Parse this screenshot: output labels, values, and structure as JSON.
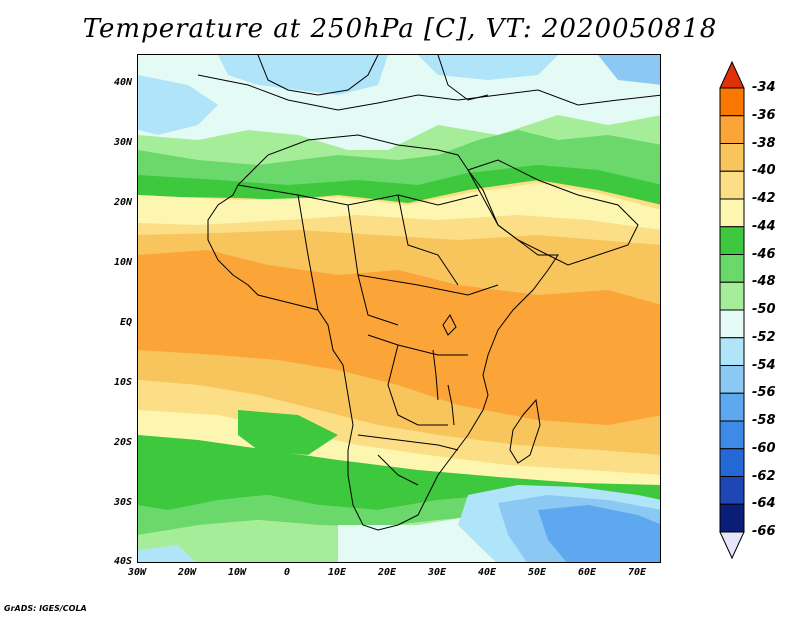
{
  "title": "Temperature at 250hPa [C], VT: 2020050818",
  "credit": "GrADS: IGES/COLA",
  "map": {
    "region": "Africa",
    "lat_labels": [
      "40N",
      "30N",
      "20N",
      "10N",
      "EQ",
      "10S",
      "20S",
      "30S",
      "40S"
    ],
    "lon_labels": [
      "30W",
      "20W",
      "10W",
      "0",
      "10E",
      "20E",
      "30E",
      "40E",
      "50E",
      "60E",
      "70E"
    ],
    "field": "Temperature at 250hPa",
    "units": "C"
  },
  "colorbar": {
    "levels": [
      {
        "label": "-34",
        "color": "#f03c0a"
      },
      {
        "label": "-36",
        "color": "#fa7800"
      },
      {
        "label": "-38",
        "color": "#fba437"
      },
      {
        "label": "-40",
        "color": "#f8c45c"
      },
      {
        "label": "-42",
        "color": "#fbde85"
      },
      {
        "label": "-44",
        "color": "#fcf6b0"
      },
      {
        "label": "-46",
        "color": "#3ec83e"
      },
      {
        "label": "-48",
        "color": "#6ad86a"
      },
      {
        "label": "-50",
        "color": "#a6ed9a"
      },
      {
        "label": "-52",
        "color": "#e4fbf5"
      },
      {
        "label": "-54",
        "color": "#b0e4f8"
      },
      {
        "label": "-56",
        "color": "#8cc8f4"
      },
      {
        "label": "-58",
        "color": "#5ea8f0"
      },
      {
        "label": "-60",
        "color": "#3f8ae6"
      },
      {
        "label": "-62",
        "color": "#2468d6"
      },
      {
        "label": "-64",
        "color": "#1e46b4"
      },
      {
        "label": "-66",
        "color": "#0a1e78"
      }
    ],
    "top_arrow_color": "#e0300a",
    "bottom_arrow_color": "#e6e6fa"
  }
}
